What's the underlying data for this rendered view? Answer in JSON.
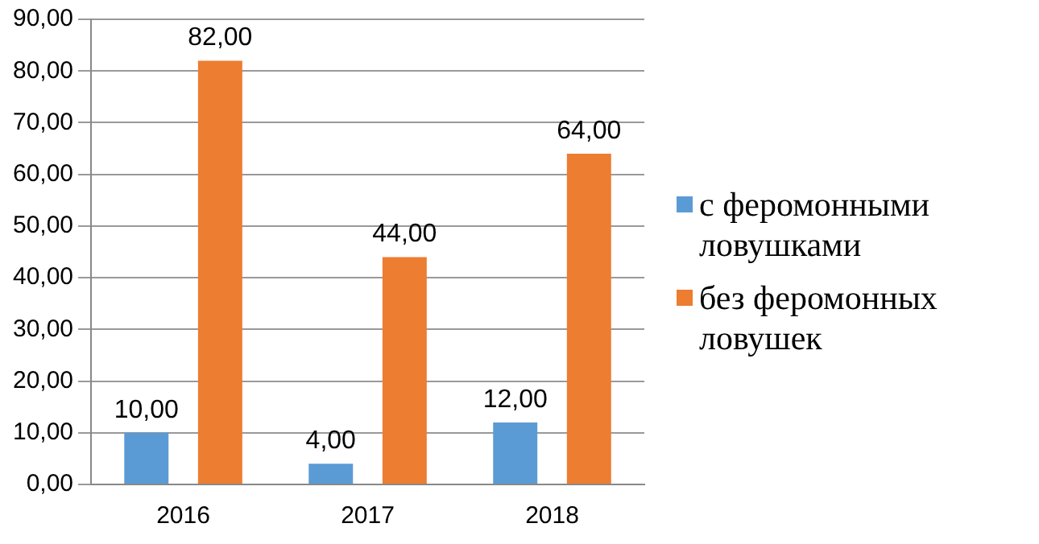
{
  "chart_data": {
    "type": "bar",
    "categories": [
      "2016",
      "2017",
      "2018"
    ],
    "series": [
      {
        "name": "с феромонными ловушками",
        "color": "#5b9bd5",
        "values": [
          10,
          4,
          12
        ],
        "value_labels": [
          "10,00",
          "4,00",
          "12,00"
        ]
      },
      {
        "name": "без феромонных ловушек",
        "color": "#ed7d31",
        "values": [
          82,
          44,
          64
        ],
        "value_labels": [
          "82,00",
          "44,00",
          "64,00"
        ]
      }
    ],
    "ylim": [
      0,
      90
    ],
    "yticks": [
      {
        "value": 0,
        "label": "0,00"
      },
      {
        "value": 10,
        "label": "10,00"
      },
      {
        "value": 20,
        "label": "20,00"
      },
      {
        "value": 30,
        "label": "30,00"
      },
      {
        "value": 40,
        "label": "40,00"
      },
      {
        "value": 50,
        "label": "50,00"
      },
      {
        "value": 60,
        "label": "60,00"
      },
      {
        "value": 70,
        "label": "70,00"
      },
      {
        "value": 80,
        "label": "80,00"
      },
      {
        "value": 90,
        "label": "90,00"
      }
    ],
    "grid": "y",
    "legend": "right"
  }
}
